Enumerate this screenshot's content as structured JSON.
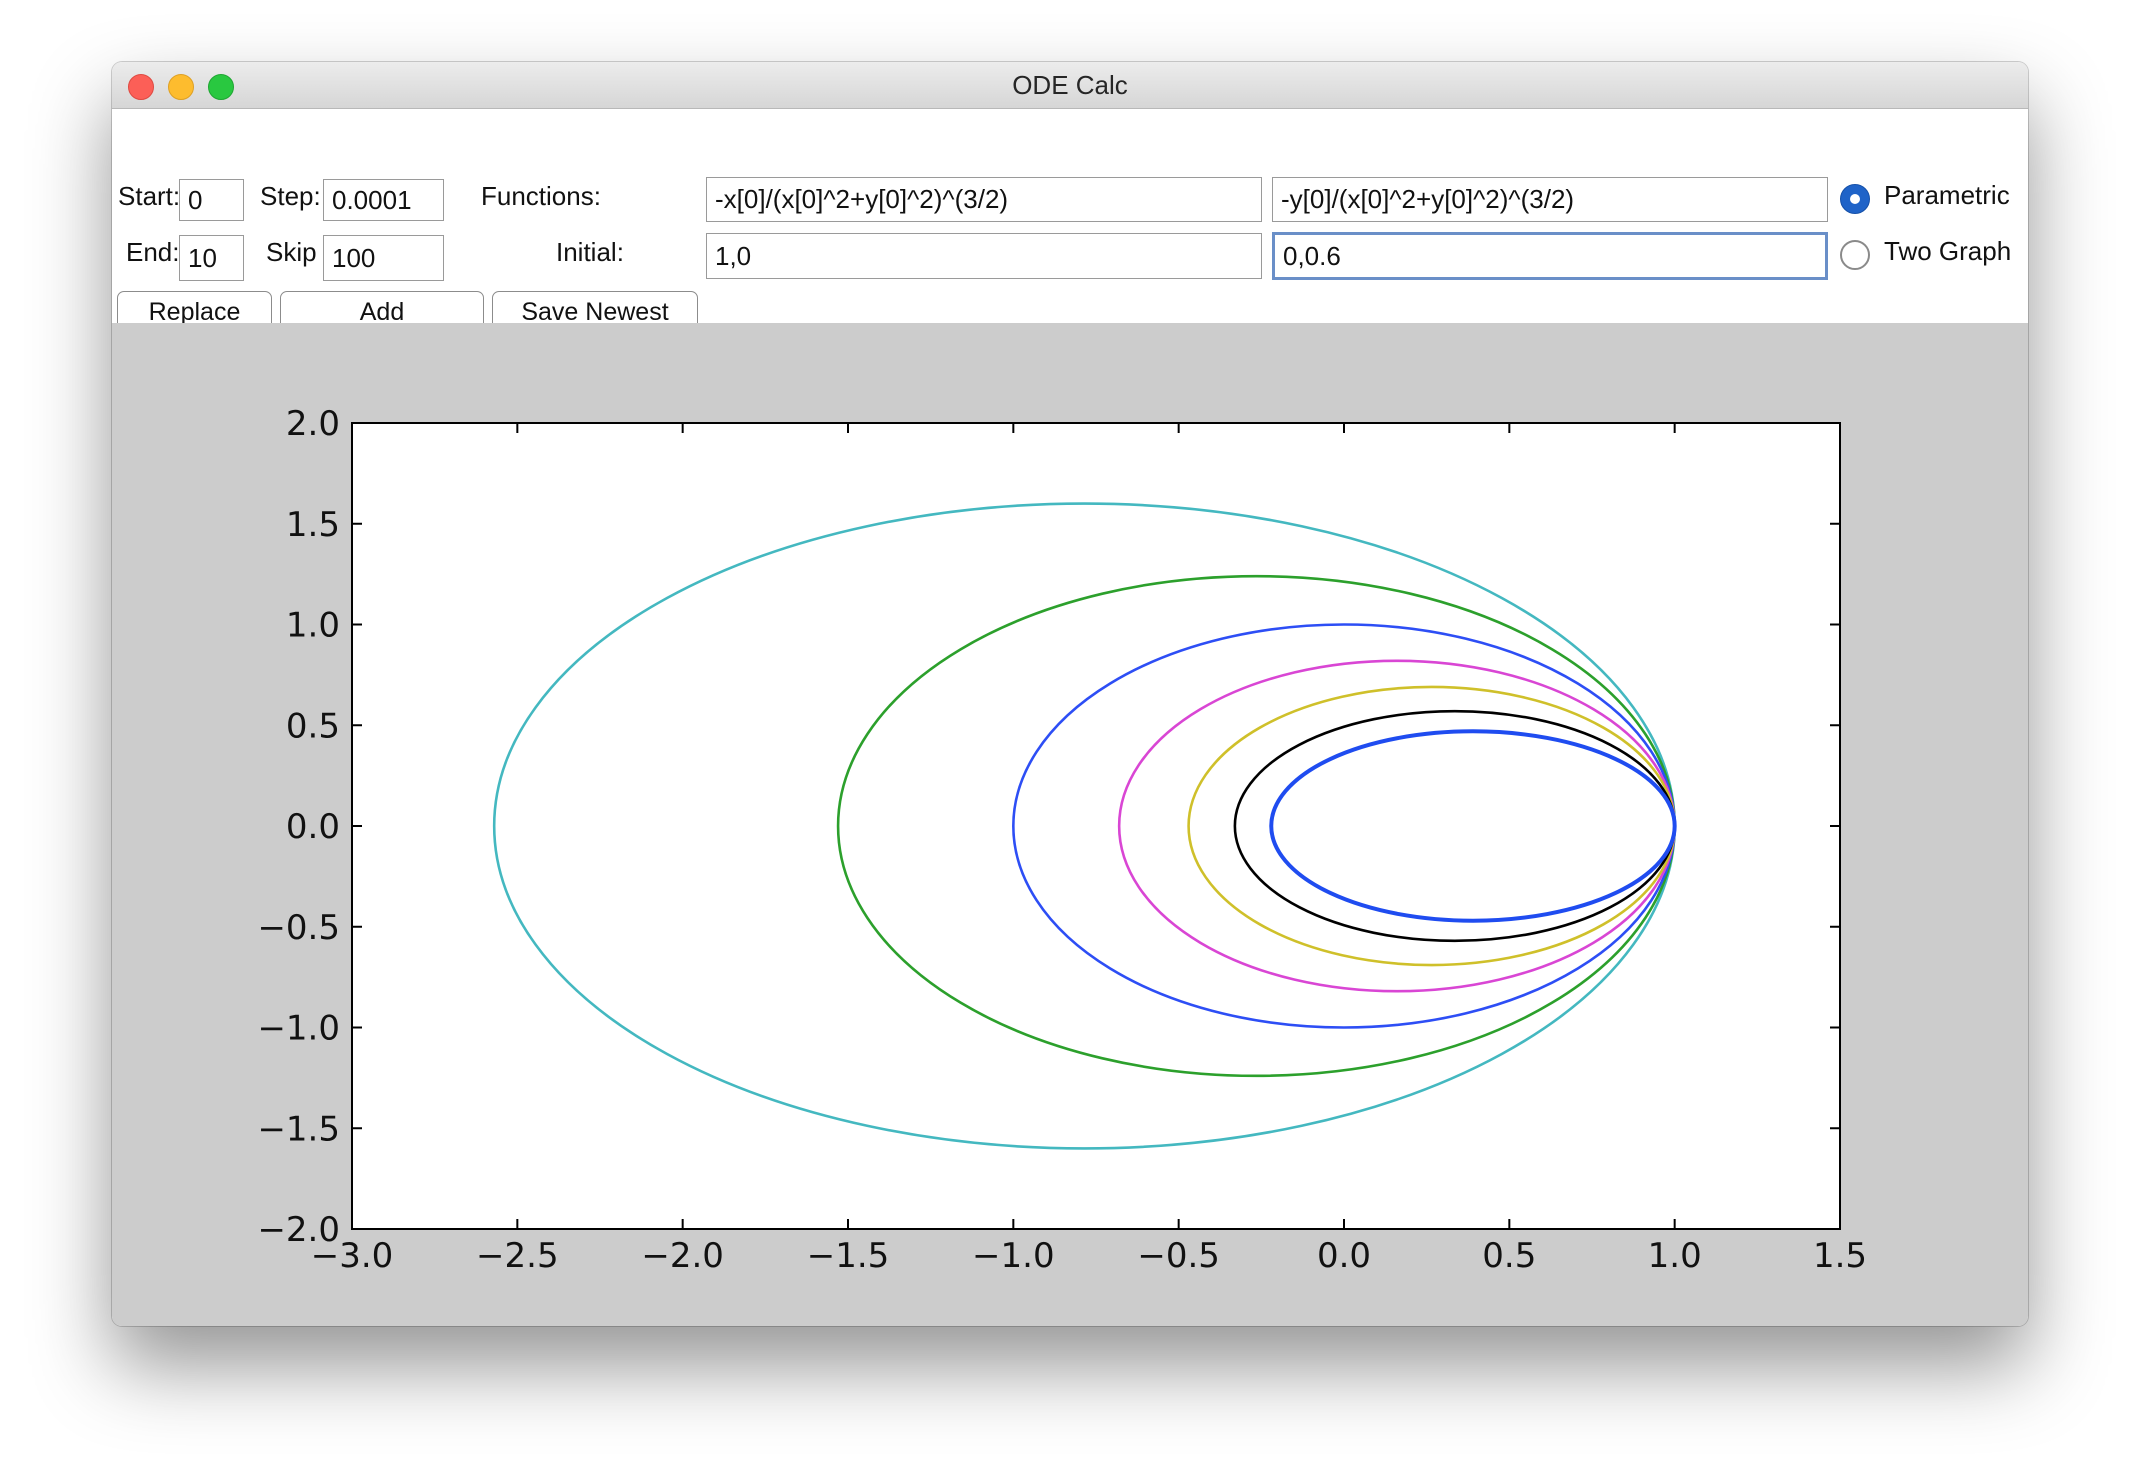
{
  "window": {
    "title": "ODE Calc"
  },
  "controls": {
    "start_label": "Start:",
    "start_value": "0",
    "step_label": "Step:",
    "step_value": "0.0001",
    "end_label": "End:",
    "end_value": "10",
    "skip_label": "Skip",
    "skip_value": "100",
    "functions_label": "Functions:",
    "function_x": "-x[0]/(x[0]^2+y[0]^2)^(3/2)",
    "function_y": "-y[0]/(x[0]^2+y[0]^2)^(3/2)",
    "initial_label": "Initial:",
    "initial_x": "1,0",
    "initial_y": "0,0.6",
    "mode_parametric": "Parametric",
    "mode_two_graph": "Two Graph",
    "selected_mode": "Parametric"
  },
  "buttons": {
    "replace": "Replace",
    "add": "Add",
    "save_newest": "Save Newest"
  },
  "chart_data": {
    "type": "line",
    "title": "",
    "xlabel": "",
    "ylabel": "",
    "xlim": [
      -3.0,
      1.5
    ],
    "ylim": [
      -2.0,
      2.0
    ],
    "xticks": [
      "−3.0",
      "−2.5",
      "−2.0",
      "−1.5",
      "−1.0",
      "−0.5",
      "0.0",
      "0.5",
      "1.0",
      "1.5"
    ],
    "yticks": [
      "2.0",
      "1.5",
      "1.0",
      "0.5",
      "0.0",
      "−0.5",
      "−1.0",
      "−1.5",
      "−2.0"
    ],
    "grid": false,
    "series": [
      {
        "color": "#44b8c0",
        "x_min": -2.57,
        "x_max": 1.0,
        "y_half_height": 1.6
      },
      {
        "color": "#2ca02c",
        "x_min": -1.53,
        "x_max": 1.0,
        "y_half_height": 1.24
      },
      {
        "color": "#2d4ef5",
        "x_min": -1.0,
        "x_max": 1.0,
        "y_half_height": 1.0
      },
      {
        "color": "#d946d4",
        "x_min": -0.68,
        "x_max": 1.0,
        "y_half_height": 0.82
      },
      {
        "color": "#cfc02a",
        "x_min": -0.47,
        "x_max": 1.0,
        "y_half_height": 0.69
      },
      {
        "color": "#000000",
        "x_min": -0.33,
        "x_max": 1.0,
        "y_half_height": 0.57
      },
      {
        "color": "#1f4cf0",
        "x_min": -0.22,
        "x_max": 1.0,
        "y_half_height": 0.47
      }
    ]
  }
}
